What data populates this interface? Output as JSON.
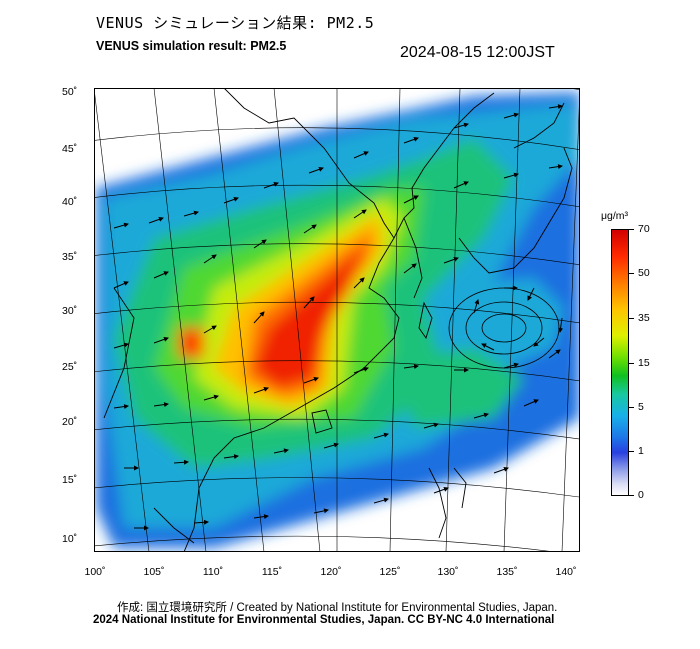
{
  "header": {
    "title_jp": "VENUS シミュレーション結果: PM2.5",
    "title_en": "VENUS simulation result: PM2.5",
    "timestamp": "2024-08-15 12:00JST"
  },
  "map": {
    "variable": "PM2.5",
    "lat_labels": [
      {
        "value": 50,
        "text": "50˚"
      },
      {
        "value": 45,
        "text": "45˚"
      },
      {
        "value": 40,
        "text": "40˚"
      },
      {
        "value": 35,
        "text": "35˚"
      },
      {
        "value": 30,
        "text": "30˚"
      },
      {
        "value": 25,
        "text": "25˚"
      },
      {
        "value": 20,
        "text": "20˚"
      },
      {
        "value": 15,
        "text": "15˚"
      },
      {
        "value": 10,
        "text": "10˚"
      }
    ],
    "lon_labels": [
      {
        "value": 100,
        "text": "100˚"
      },
      {
        "value": 105,
        "text": "105˚"
      },
      {
        "value": 110,
        "text": "110˚"
      },
      {
        "value": 115,
        "text": "115˚"
      },
      {
        "value": 120,
        "text": "120˚"
      },
      {
        "value": 125,
        "text": "125˚"
      },
      {
        "value": 130,
        "text": "130˚"
      },
      {
        "value": 135,
        "text": "135˚"
      },
      {
        "value": 140,
        "text": "140˚"
      }
    ],
    "features": [
      "pm25-concentration-field",
      "wind-vectors",
      "coastlines",
      "graticule",
      "typhoon-circulation-near-30N-135E"
    ]
  },
  "colorbar": {
    "unit": "μg/m³",
    "ticks": [
      {
        "value": 70,
        "text": "70"
      },
      {
        "value": 50,
        "text": "50"
      },
      {
        "value": 35,
        "text": "35"
      },
      {
        "value": 15,
        "text": "15"
      },
      {
        "value": 5,
        "text": "5"
      },
      {
        "value": 1,
        "text": "1"
      },
      {
        "value": 0,
        "text": "0"
      }
    ],
    "colors": [
      "#d10000",
      "#ff7b00",
      "#ffc400",
      "#6fe000",
      "#10c020",
      "#18b0e8",
      "#2840e0",
      "#ffffff"
    ]
  },
  "footer": {
    "credit_line1": "作成: 国立環境研究所 / Created by National Institute for Environmental Studies, Japan.",
    "credit_line2": "2024 National Institute for Environmental Studies, Japan. CC BY-NC 4.0 International"
  }
}
